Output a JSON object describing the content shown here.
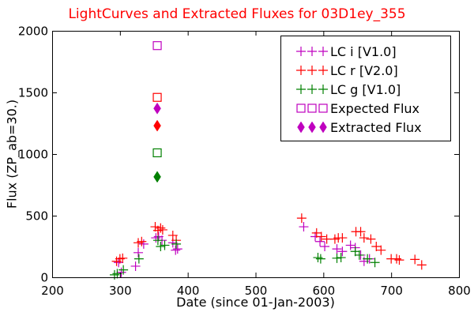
{
  "colors": {
    "title": "#ff0000",
    "lc_i": "#bf00bf",
    "lc_r": "#ff0000",
    "lc_g": "#008000",
    "expected_i": "#bf00bf",
    "expected_r": "#ff0000",
    "expected_g": "#008000"
  },
  "chart_data": {
    "type": "scatter",
    "title": "LightCurves and Extracted Fluxes for 03D1ey_355",
    "xlabel": "Date (since 01-Jan-2003)",
    "ylabel": "Flux (ZP_ab=30.)",
    "xlim": [
      200,
      800
    ],
    "ylim": [
      0,
      2000
    ],
    "xticks": [
      200,
      300,
      400,
      500,
      600,
      700,
      800
    ],
    "yticks": [
      0,
      500,
      1000,
      1500,
      2000
    ],
    "grid": false,
    "legend_position": "top-right",
    "series": [
      {
        "name": "LC i [V1.0]",
        "marker": "plus",
        "color_key": "lc_i",
        "points": [
          [
            298,
            120
          ],
          [
            302,
            40
          ],
          [
            323,
            90
          ],
          [
            327,
            200
          ],
          [
            335,
            270
          ],
          [
            353,
            320
          ],
          [
            357,
            330
          ],
          [
            362,
            300
          ],
          [
            378,
            280
          ],
          [
            382,
            220
          ],
          [
            385,
            230
          ],
          [
            571,
            410
          ],
          [
            588,
            330
          ],
          [
            595,
            290
          ],
          [
            602,
            250
          ],
          [
            620,
            230
          ],
          [
            628,
            210
          ],
          [
            640,
            260
          ],
          [
            647,
            240
          ],
          [
            655,
            180
          ],
          [
            660,
            130
          ],
          [
            668,
            150
          ]
        ]
      },
      {
        "name": "LC r [V2.0]",
        "marker": "plus",
        "color_key": "lc_r",
        "points": [
          [
            295,
            130
          ],
          [
            300,
            150
          ],
          [
            304,
            155
          ],
          [
            327,
            280
          ],
          [
            332,
            290
          ],
          [
            352,
            410
          ],
          [
            356,
            380
          ],
          [
            360,
            400
          ],
          [
            363,
            385
          ],
          [
            378,
            340
          ],
          [
            383,
            300
          ],
          [
            568,
            480
          ],
          [
            590,
            360
          ],
          [
            597,
            330
          ],
          [
            605,
            310
          ],
          [
            617,
            310
          ],
          [
            622,
            320
          ],
          [
            628,
            320
          ],
          [
            648,
            370
          ],
          [
            655,
            370
          ],
          [
            660,
            320
          ],
          [
            670,
            310
          ],
          [
            678,
            250
          ],
          [
            685,
            220
          ],
          [
            700,
            150
          ],
          [
            708,
            150
          ],
          [
            712,
            140
          ],
          [
            735,
            145
          ],
          [
            745,
            100
          ]
        ]
      },
      {
        "name": "LC g [V1.0]",
        "marker": "plus",
        "color_key": "lc_g",
        "points": [
          [
            292,
            20
          ],
          [
            296,
            30
          ],
          [
            305,
            60
          ],
          [
            328,
            150
          ],
          [
            356,
            300
          ],
          [
            360,
            250
          ],
          [
            366,
            260
          ],
          [
            383,
            270
          ],
          [
            592,
            160
          ],
          [
            596,
            150
          ],
          [
            620,
            155
          ],
          [
            626,
            160
          ],
          [
            647,
            210
          ],
          [
            653,
            180
          ],
          [
            665,
            150
          ],
          [
            676,
            120
          ]
        ]
      },
      {
        "name": "Expected Flux",
        "marker": "square-open",
        "points": [
          {
            "x": 355,
            "y": 1880,
            "color_key": "expected_i"
          },
          {
            "x": 355,
            "y": 1460,
            "color_key": "expected_r"
          },
          {
            "x": 355,
            "y": 1010,
            "color_key": "expected_g"
          }
        ]
      },
      {
        "name": "Extracted Flux",
        "marker": "diamond-filled",
        "points": [
          {
            "x": 355,
            "y": 1370,
            "color_key": "expected_i"
          },
          {
            "x": 355,
            "y": 1230,
            "color_key": "expected_r"
          },
          {
            "x": 355,
            "y": 815,
            "color_key": "expected_g"
          }
        ]
      }
    ]
  }
}
